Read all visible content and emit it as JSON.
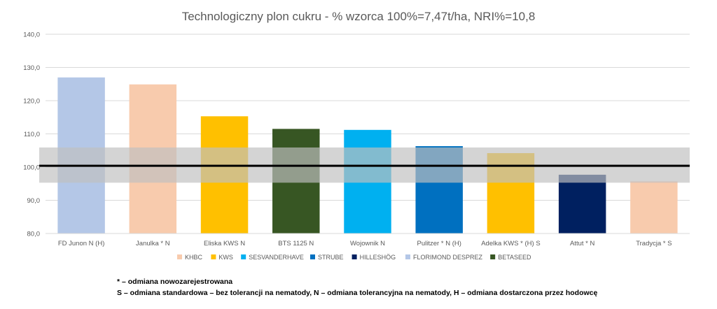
{
  "chart_data": {
    "type": "bar",
    "title": "Technologiczny plon cukru - % wzorca 100%=7,47t/ha, NRI%=10,8",
    "xlabel": "",
    "ylabel": "",
    "ylim": [
      80,
      140
    ],
    "yticks": [
      "80,0",
      "90,0",
      "100,0",
      "110,0",
      "120,0",
      "130,0",
      "140,0"
    ],
    "ytick_values": [
      80,
      90,
      100,
      110,
      120,
      130,
      140
    ],
    "grid": true,
    "legend_position": "bottom",
    "reference_line": 100.4,
    "nri_band": [
      95.3,
      105.9
    ],
    "categories": [
      "FD Junon N (H)",
      "Janulka * N",
      "Eliska KWS N",
      "BTS 1125 N",
      "Wojownik N",
      "Pulitzer * N (H)",
      "Adelka KWS * (H) S",
      "Attut * N",
      "Tradycja * S"
    ],
    "values": [
      127.0,
      124.9,
      115.3,
      111.5,
      111.2,
      106.3,
      104.2,
      97.7,
      95.7
    ],
    "bar_groups": [
      "FLORIMOND DESPREZ",
      "KHBC",
      "KWS",
      "BETASEED",
      "SESVANDERHAVE",
      "STRUBE",
      "KWS",
      "HILLESHÖG",
      "KHBC"
    ],
    "legend": [
      {
        "name": "KHBC",
        "color": "#F8CBAD"
      },
      {
        "name": "KWS",
        "color": "#FFC000"
      },
      {
        "name": "SESVANDERHAVE",
        "color": "#00B0F0"
      },
      {
        "name": "STRUBE",
        "color": "#0070C0"
      },
      {
        "name": "HILLESHÖG",
        "color": "#002060"
      },
      {
        "name": "FLORIMOND DESPREZ",
        "color": "#B4C7E7"
      },
      {
        "name": "BETASEED",
        "color": "#375623"
      }
    ]
  },
  "footnotes": {
    "line1": "* – odmiana nowozarejestrowana",
    "line2": "S – odmiana standardowa – bez tolerancji na nematody, N – odmiana tolerancyjna na nematody, H – odmiana dostarczona przez hodowcę"
  },
  "colors": {
    "grid": "#D9D9D9",
    "band": "#BFBFBF",
    "reference_line": "#000000",
    "text": "#595959"
  }
}
